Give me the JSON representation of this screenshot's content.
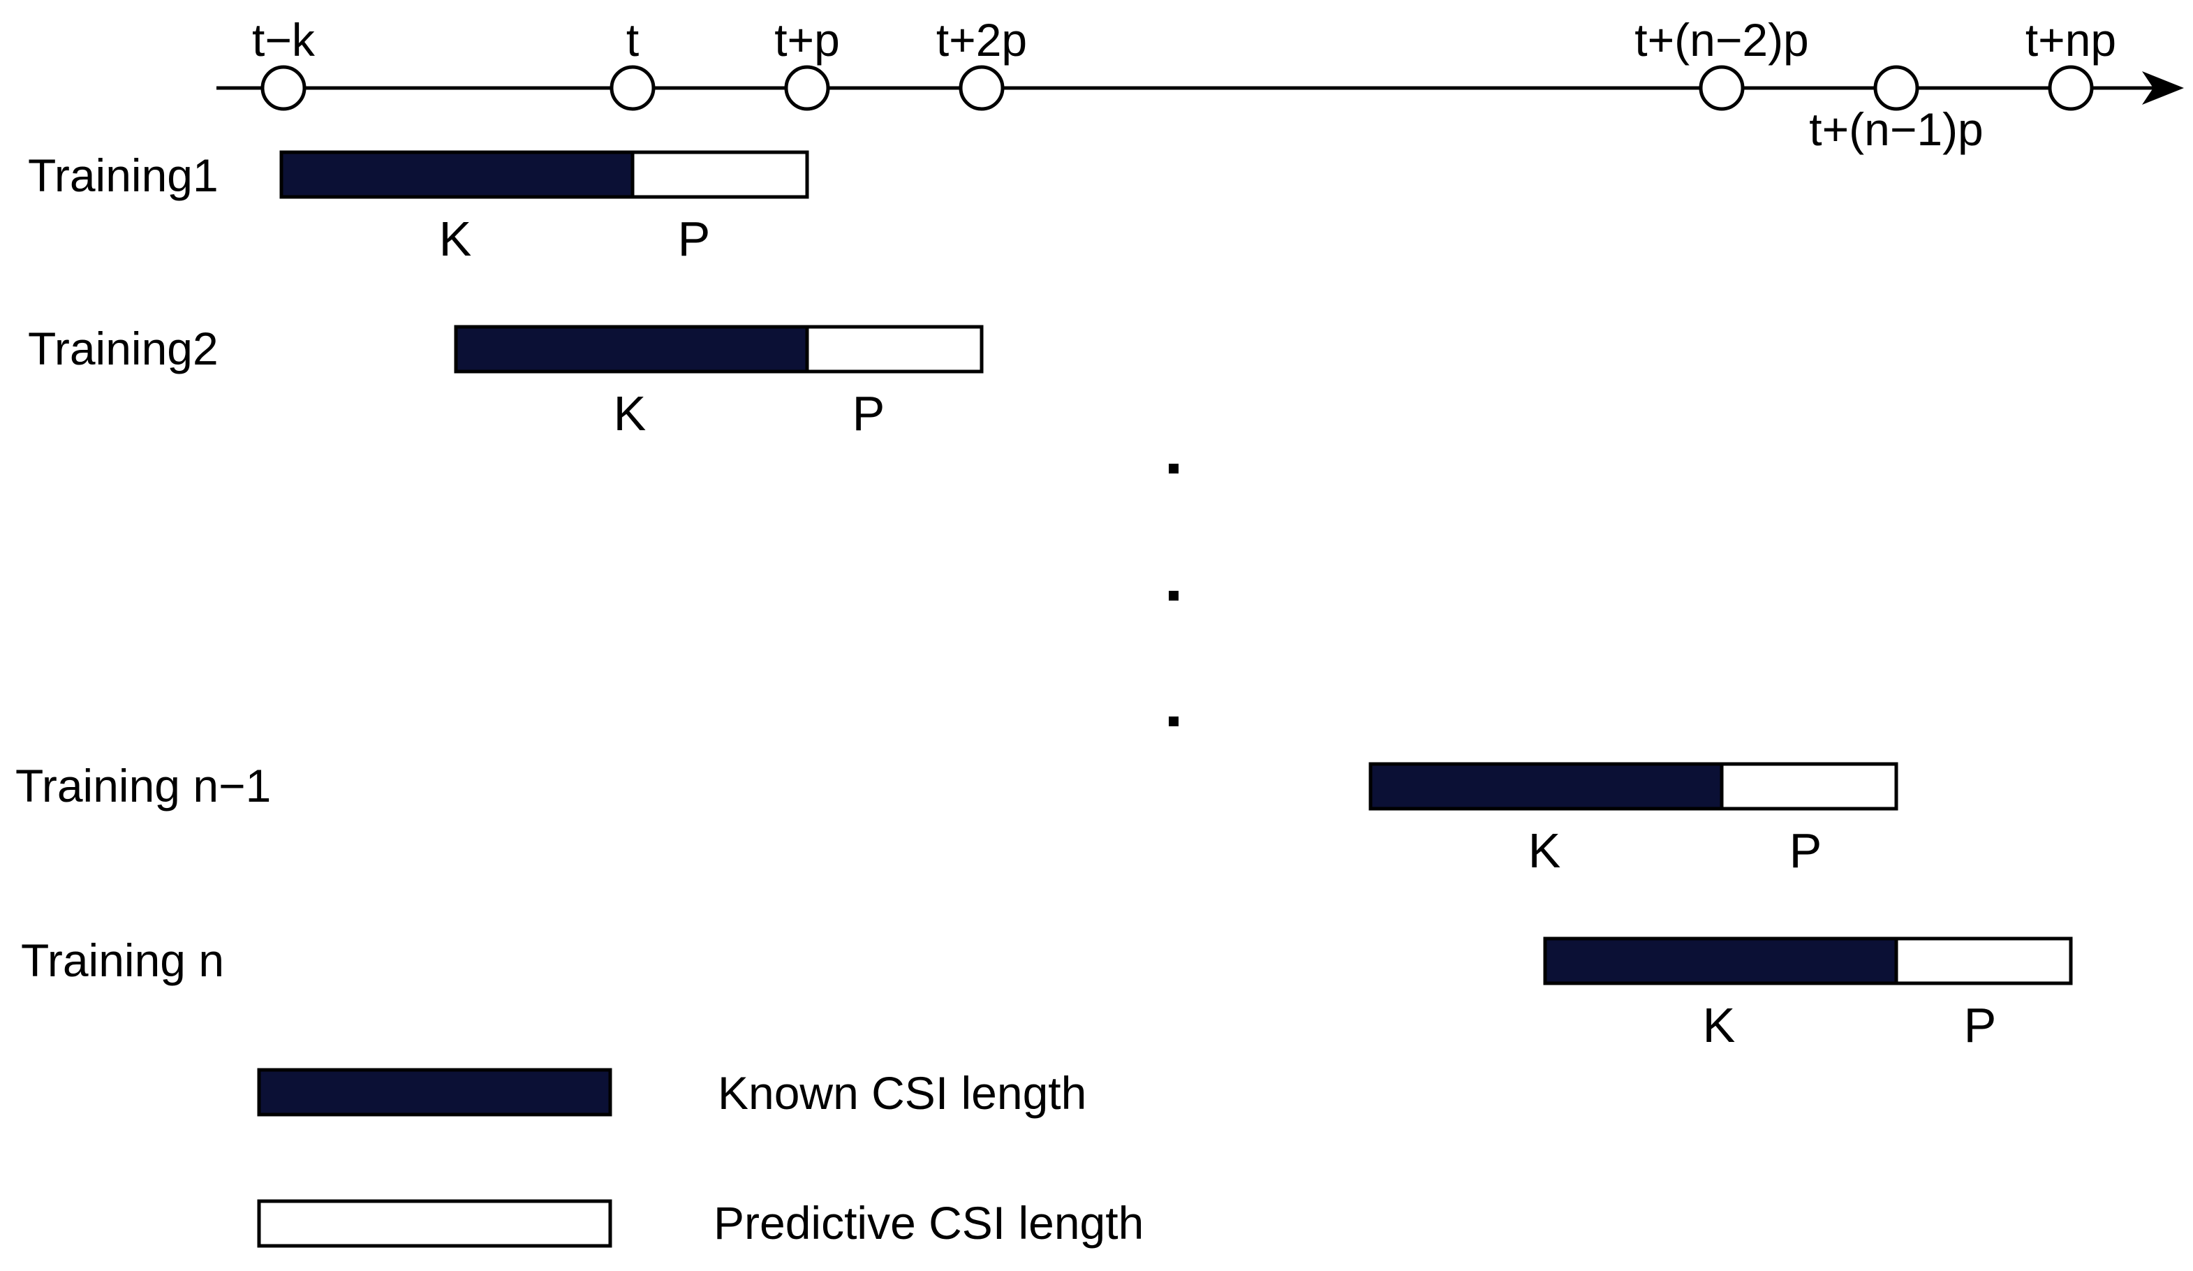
{
  "colors": {
    "known": "#0b1035",
    "predictive": "#ffffff",
    "stroke": "#000000"
  },
  "timeline": {
    "ticks": [
      {
        "label": "t−k",
        "label_side": "above"
      },
      {
        "label": "t",
        "label_side": "above"
      },
      {
        "label": "t+p",
        "label_side": "above"
      },
      {
        "label": "t+2p",
        "label_side": "above"
      },
      {
        "label": "t+(n−2)p",
        "label_side": "above"
      },
      {
        "label": "t+(n−1)p",
        "label_side": "below"
      },
      {
        "label": "t+np",
        "label_side": "above"
      }
    ]
  },
  "trainings": [
    {
      "label": "Training1",
      "known_label": "K",
      "predictive_label": "P"
    },
    {
      "label": "Training2",
      "known_label": "K",
      "predictive_label": "P"
    },
    {
      "label": "Training n−1",
      "known_label": "K",
      "predictive_label": "P"
    },
    {
      "label": "Training n",
      "known_label": "K",
      "predictive_label": "P"
    }
  ],
  "ellipsis": "...",
  "legend": {
    "known": "Known CSI length",
    "predictive": "Predictive CSI length"
  }
}
